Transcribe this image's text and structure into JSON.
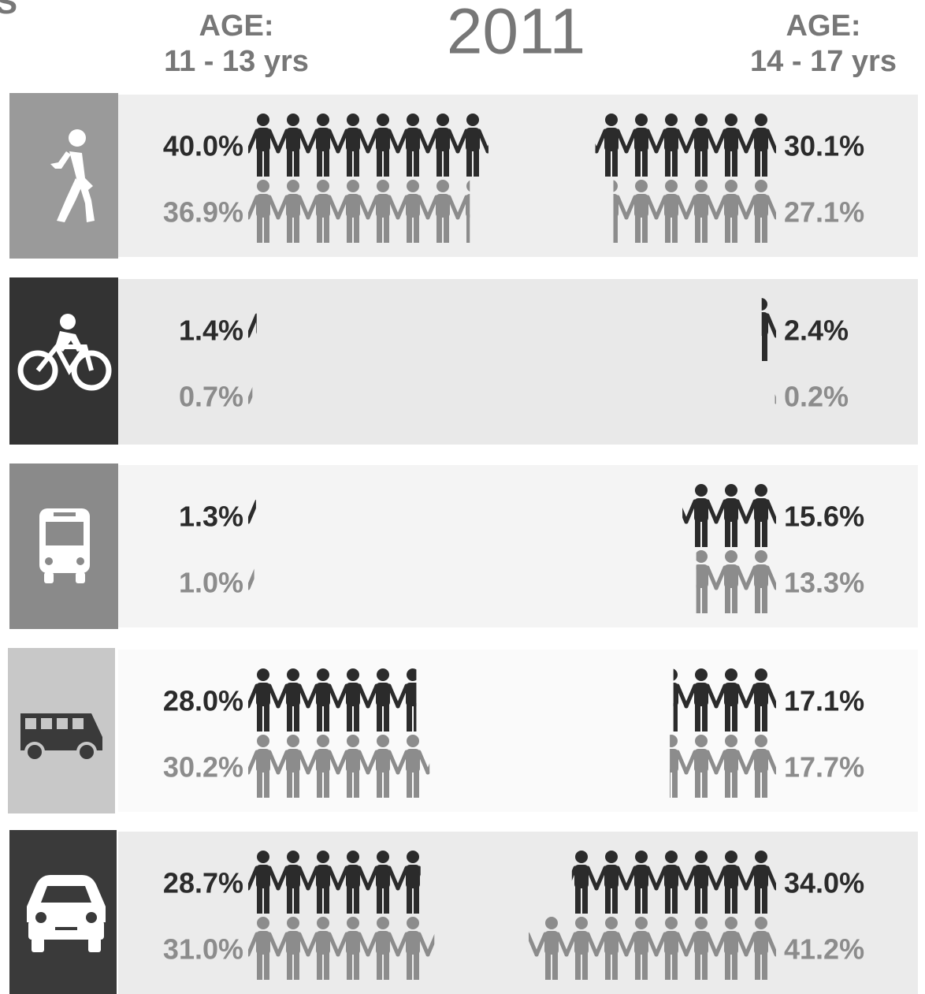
{
  "chart_data": {
    "type": "pictograph",
    "title": "2011",
    "corner_text": "S",
    "xlim": [
      0,
      45
    ],
    "groups": [
      {
        "heading": "AGE:",
        "label": "11 - 13 yrs",
        "series": [
          {
            "color": "#2b2b2b",
            "values": [
              40.0,
              1.4,
              1.3,
              28.0,
              28.7
            ],
            "value_labels": [
              "40.0%",
              "1.4%",
              "1.3%",
              "28.0%",
              "28.7%"
            ]
          },
          {
            "color": "#8c8c8c",
            "values": [
              36.9,
              0.7,
              1.0,
              30.2,
              31.0
            ],
            "value_labels": [
              "36.9%",
              "0.7%",
              "1.0%",
              "30.2%",
              "31.0%"
            ]
          }
        ]
      },
      {
        "heading": "AGE:",
        "label": "14 - 17 yrs",
        "series": [
          {
            "color": "#2b2b2b",
            "values": [
              30.1,
              2.4,
              15.6,
              17.1,
              34.0
            ],
            "value_labels": [
              "30.1%",
              "2.4%",
              "15.6%",
              "17.1%",
              "34.0%"
            ]
          },
          {
            "color": "#8c8c8c",
            "values": [
              27.1,
              0.2,
              13.3,
              17.7,
              41.2
            ],
            "value_labels": [
              "27.1%",
              "0.2%",
              "13.3%",
              "17.7%",
              "41.2%"
            ]
          }
        ]
      }
    ]
  }
}
